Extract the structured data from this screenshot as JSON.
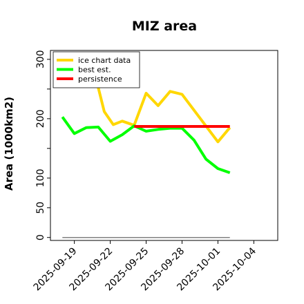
{
  "chart_data": {
    "type": "line",
    "title": "MIZ area",
    "xlabel": "",
    "ylabel": "Area (1000km2)",
    "x_start": "2025-09-17",
    "x_end": "2025-10-06",
    "ylim": [
      -5,
      315
    ],
    "x_ticks": [
      "2025-09-19",
      "2025-09-22",
      "2025-09-25",
      "2025-09-28",
      "2025-10-01",
      "2025-10-04"
    ],
    "y_ticks": [
      0,
      50,
      100,
      150,
      200,
      250,
      300
    ],
    "y_tick_labels": [
      "0",
      "50",
      "100",
      "",
      "200",
      "",
      "300"
    ],
    "grid": false,
    "legend": {
      "position": "top-left",
      "entries": [
        "ice chart data",
        "best est.",
        "persistence"
      ]
    },
    "series": [
      {
        "name": "ice chart data",
        "color": "#FFD700",
        "x": [
          "2025-09-21",
          "2025-09-21T12:00",
          "2025-09-22T06:00",
          "2025-09-23",
          "2025-09-24",
          "2025-09-25",
          "2025-09-26",
          "2025-09-27",
          "2025-09-28",
          "2025-10-01",
          "2025-10-02"
        ],
        "y": [
          252,
          212,
          190,
          196,
          189,
          243,
          222,
          246,
          241,
          161,
          185
        ]
      },
      {
        "name": "best est.",
        "color": "#00FF00",
        "x": [
          "2025-09-18",
          "2025-09-19",
          "2025-09-20",
          "2025-09-21",
          "2025-09-22",
          "2025-09-23",
          "2025-09-24",
          "2025-09-25",
          "2025-09-26",
          "2025-09-27",
          "2025-09-28",
          "2025-09-29",
          "2025-09-30",
          "2025-10-01",
          "2025-10-02"
        ],
        "y": [
          203,
          175,
          185,
          186,
          162,
          173,
          188,
          179,
          182,
          184,
          184,
          164,
          132,
          116,
          109
        ]
      },
      {
        "name": "persistence",
        "color": "#FF0000",
        "x": [
          "2025-09-24",
          "2025-10-02"
        ],
        "y": [
          187,
          187
        ]
      },
      {
        "name": "",
        "color": "#808080",
        "x": [
          "2025-09-18",
          "2025-10-02"
        ],
        "y": [
          0,
          0
        ]
      }
    ]
  }
}
